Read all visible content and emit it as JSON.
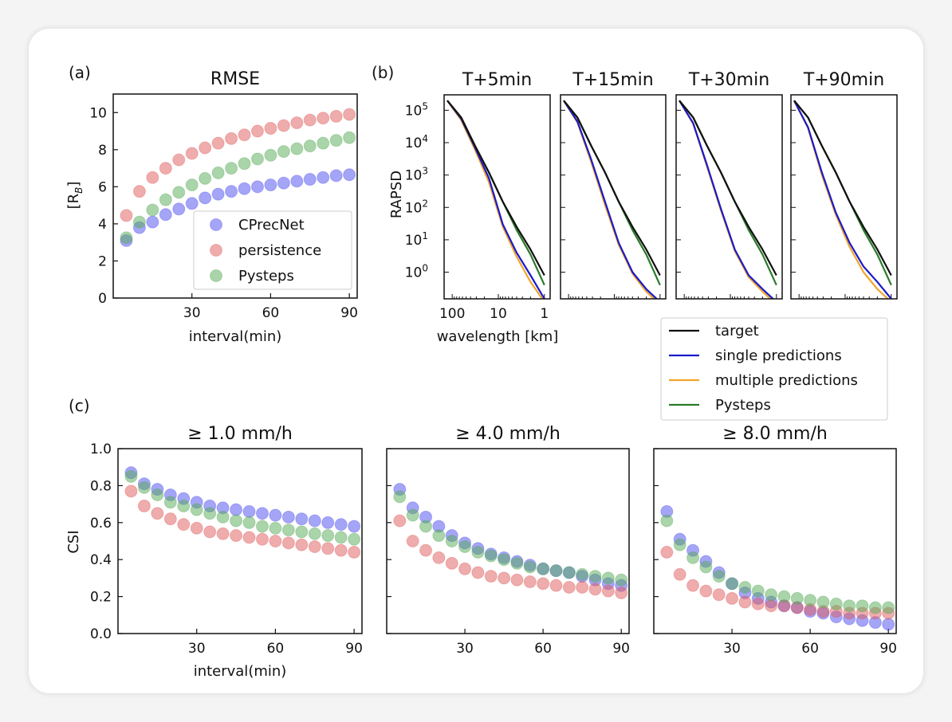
{
  "figure": {
    "panel_labels": {
      "a": "(a)",
      "b": "(b)",
      "c": "(c)"
    }
  },
  "chart_data": [
    {
      "id": "a",
      "type": "scatter",
      "title": "RMSE",
      "xlabel": "interval(min)",
      "ylabel": "[R_B]",
      "xlim": [
        0,
        93
      ],
      "ylim": [
        0,
        11
      ],
      "xticks": [
        30,
        60,
        90
      ],
      "yticks": [
        0,
        2,
        4,
        6,
        8,
        10
      ],
      "legend_position": "lower-right",
      "x": [
        5,
        10,
        15,
        20,
        25,
        30,
        35,
        40,
        45,
        50,
        55,
        60,
        65,
        70,
        75,
        80,
        85,
        90
      ],
      "series": [
        {
          "name": "CPrecNet",
          "color": "#4c4cf0",
          "values": [
            3.1,
            3.8,
            4.1,
            4.5,
            4.8,
            5.1,
            5.4,
            5.6,
            5.75,
            5.9,
            6.0,
            6.1,
            6.2,
            6.3,
            6.4,
            6.5,
            6.6,
            6.65
          ]
        },
        {
          "name": "persistence",
          "color": "#e05a5a",
          "values": [
            4.45,
            5.75,
            6.5,
            7.0,
            7.45,
            7.8,
            8.1,
            8.35,
            8.6,
            8.8,
            9.0,
            9.15,
            9.3,
            9.45,
            9.6,
            9.7,
            9.8,
            9.9
          ]
        },
        {
          "name": "Pysteps",
          "color": "#55aa55",
          "values": [
            3.25,
            4.1,
            4.75,
            5.3,
            5.7,
            6.1,
            6.45,
            6.75,
            7.0,
            7.25,
            7.5,
            7.7,
            7.9,
            8.05,
            8.2,
            8.35,
            8.5,
            8.65
          ]
        }
      ]
    },
    {
      "id": "b",
      "type": "line",
      "ylabel": "RAPSD",
      "xlabel": "wavelength [km]",
      "xscale": "log",
      "yscale": "log",
      "xlim": [
        150,
        0.75
      ],
      "ylim": [
        0.15,
        300000
      ],
      "xticks": [
        100,
        10,
        1
      ],
      "xticklabels": [
        "100",
        "10",
        "1"
      ],
      "yticks": [
        1,
        10,
        100,
        1000,
        10000,
        100000
      ],
      "yticklabels": [
        "10^0",
        "10^1",
        "10^2",
        "10^3",
        "10^4",
        "10^5"
      ],
      "legend_position": "below-right",
      "legend": [
        {
          "name": "target",
          "color": "#111111"
        },
        {
          "name": "single predictions",
          "color": "#1a1acc"
        },
        {
          "name": "multiple predictions",
          "color": "#f2a52a"
        },
        {
          "name": "Pysteps",
          "color": "#2a7a2a"
        }
      ],
      "panels": [
        {
          "title": "T+5min",
          "wavelength_km": [
            128,
            64,
            32,
            16,
            8,
            4,
            2,
            1
          ],
          "target": [
            200000,
            60000,
            8000,
            1200,
            150,
            25,
            5,
            0.8
          ],
          "single": [
            200000,
            55000,
            7000,
            800,
            30,
            4,
            0.8,
            0.15
          ],
          "multiple": [
            200000,
            50000,
            6000,
            600,
            25,
            3,
            0.5,
            0.12
          ],
          "pysteps": [
            200000,
            60000,
            8000,
            1200,
            150,
            20,
            3.5,
            0.4
          ]
        },
        {
          "title": "T+15min",
          "wavelength_km": [
            128,
            64,
            32,
            16,
            8,
            4,
            2,
            1
          ],
          "target": [
            200000,
            60000,
            8000,
            1200,
            150,
            25,
            5,
            0.8
          ],
          "single": [
            200000,
            45000,
            3000,
            150,
            8,
            1,
            0.3,
            0.12
          ],
          "multiple": [
            200000,
            42000,
            2500,
            120,
            7,
            0.9,
            0.25,
            0.1
          ],
          "pysteps": [
            200000,
            60000,
            8000,
            1200,
            150,
            20,
            3.5,
            0.4
          ]
        },
        {
          "title": "T+30min",
          "wavelength_km": [
            128,
            64,
            32,
            16,
            8,
            4,
            2,
            1
          ],
          "target": [
            200000,
            60000,
            8000,
            1200,
            150,
            25,
            5,
            0.8
          ],
          "single": [
            200000,
            40000,
            2000,
            90,
            5,
            0.8,
            0.3,
            0.12
          ],
          "multiple": [
            200000,
            38000,
            1800,
            80,
            4.5,
            0.7,
            0.25,
            0.1
          ],
          "pysteps": [
            200000,
            60000,
            8000,
            1200,
            150,
            20,
            3.5,
            0.4
          ]
        },
        {
          "title": "T+90min",
          "wavelength_km": [
            128,
            64,
            32,
            16,
            8,
            4,
            2,
            1
          ],
          "target": [
            200000,
            60000,
            8000,
            1200,
            150,
            25,
            5,
            0.8
          ],
          "single": [
            200000,
            30000,
            1200,
            70,
            8,
            1.5,
            0.5,
            0.15
          ],
          "multiple": [
            200000,
            28000,
            1000,
            60,
            6,
            1.0,
            0.3,
            0.12
          ],
          "pysteps": [
            200000,
            60000,
            8000,
            1200,
            150,
            20,
            3.5,
            0.4
          ]
        }
      ]
    },
    {
      "id": "c",
      "type": "scatter",
      "ylabel": "CSI",
      "xlabel": "interval(min)",
      "xlim": [
        0,
        93
      ],
      "ylim": [
        0,
        1.0
      ],
      "xticks": [
        30,
        60,
        90
      ],
      "yticks": [
        0.0,
        0.2,
        0.4,
        0.6,
        0.8,
        1.0
      ],
      "x": [
        5,
        10,
        15,
        20,
        25,
        30,
        35,
        40,
        45,
        50,
        55,
        60,
        65,
        70,
        75,
        80,
        85,
        90
      ],
      "panels": [
        {
          "title": "≥  1.0 mm/h",
          "series": [
            {
              "name": "CPrecNet",
              "color": "#4c4cf0",
              "values": [
                0.87,
                0.81,
                0.78,
                0.75,
                0.73,
                0.71,
                0.69,
                0.68,
                0.67,
                0.66,
                0.65,
                0.64,
                0.63,
                0.62,
                0.61,
                0.6,
                0.59,
                0.58
              ]
            },
            {
              "name": "persistence",
              "color": "#e05a5a",
              "values": [
                0.77,
                0.69,
                0.65,
                0.62,
                0.59,
                0.57,
                0.55,
                0.54,
                0.53,
                0.52,
                0.51,
                0.5,
                0.49,
                0.48,
                0.47,
                0.46,
                0.45,
                0.44
              ]
            },
            {
              "name": "Pysteps",
              "color": "#55aa55",
              "values": [
                0.85,
                0.79,
                0.75,
                0.71,
                0.69,
                0.67,
                0.65,
                0.63,
                0.61,
                0.6,
                0.58,
                0.57,
                0.56,
                0.55,
                0.54,
                0.53,
                0.52,
                0.51
              ]
            }
          ]
        },
        {
          "title": "≥  4.0 mm/h",
          "series": [
            {
              "name": "CPrecNet",
              "color": "#4c4cf0",
              "values": [
                0.78,
                0.68,
                0.63,
                0.58,
                0.53,
                0.49,
                0.46,
                0.43,
                0.41,
                0.39,
                0.37,
                0.35,
                0.34,
                0.33,
                0.31,
                0.29,
                0.27,
                0.26
              ]
            },
            {
              "name": "persistence",
              "color": "#e05a5a",
              "values": [
                0.61,
                0.5,
                0.45,
                0.41,
                0.38,
                0.35,
                0.33,
                0.31,
                0.3,
                0.29,
                0.28,
                0.27,
                0.26,
                0.25,
                0.25,
                0.24,
                0.23,
                0.22
              ]
            },
            {
              "name": "Pysteps",
              "color": "#55aa55",
              "values": [
                0.74,
                0.64,
                0.58,
                0.53,
                0.5,
                0.47,
                0.44,
                0.42,
                0.4,
                0.38,
                0.36,
                0.35,
                0.34,
                0.33,
                0.32,
                0.31,
                0.3,
                0.29
              ]
            }
          ]
        },
        {
          "title": "≥  8.0 mm/h",
          "series": [
            {
              "name": "CPrecNet",
              "color": "#4c4cf0",
              "values": [
                0.66,
                0.51,
                0.45,
                0.39,
                0.33,
                0.27,
                0.22,
                0.19,
                0.17,
                0.15,
                0.14,
                0.12,
                0.11,
                0.09,
                0.08,
                0.07,
                0.06,
                0.05
              ]
            },
            {
              "name": "persistence",
              "color": "#e05a5a",
              "values": [
                0.44,
                0.32,
                0.26,
                0.23,
                0.21,
                0.19,
                0.17,
                0.16,
                0.15,
                0.15,
                0.14,
                0.13,
                0.12,
                0.12,
                0.11,
                0.11,
                0.11,
                0.11
              ]
            },
            {
              "name": "Pysteps",
              "color": "#55aa55",
              "values": [
                0.61,
                0.48,
                0.41,
                0.36,
                0.31,
                0.27,
                0.25,
                0.23,
                0.21,
                0.2,
                0.19,
                0.18,
                0.17,
                0.16,
                0.15,
                0.15,
                0.14,
                0.14
              ]
            }
          ]
        }
      ]
    }
  ]
}
